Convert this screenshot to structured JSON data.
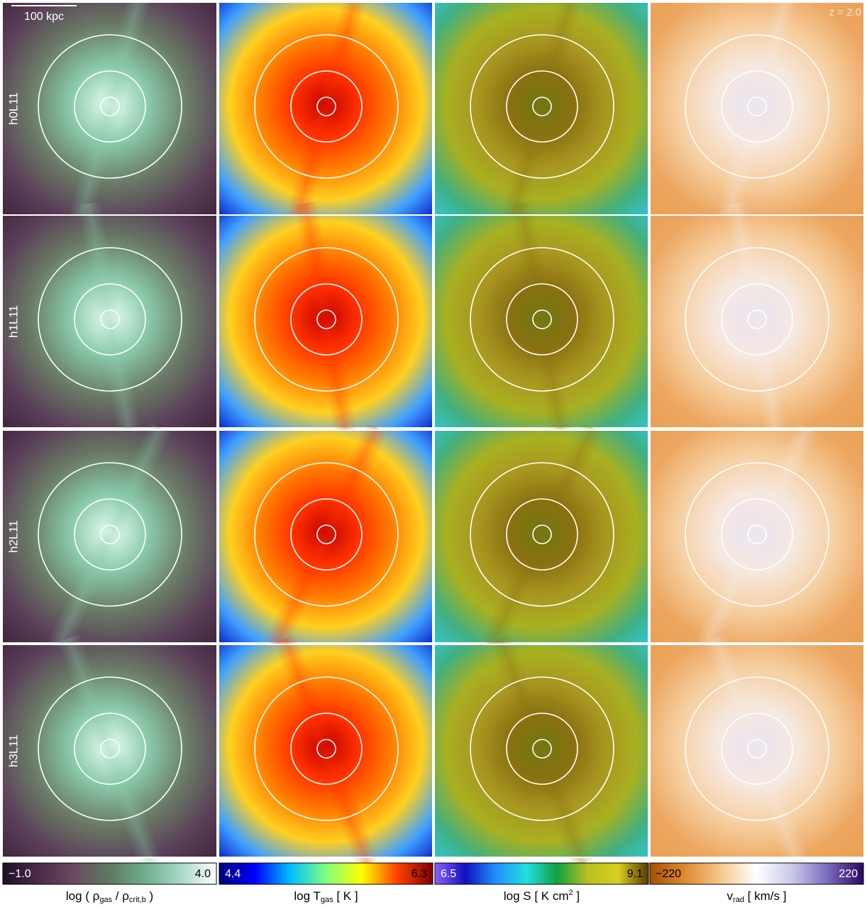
{
  "figure": {
    "scale_bar": "100 kpc",
    "redshift": "z = 2.0",
    "rows": [
      "h0L11",
      "h1L11",
      "h2L11",
      "h3L11"
    ],
    "columns": [
      {
        "colormap": [
          "#1e0f24",
          "#4a2a4a",
          "#6b4a5e",
          "#5e7a62",
          "#6fae8c",
          "#a8d8c8",
          "#ffffff"
        ],
        "panel_stops": [
          "#e8fff4",
          "#88c8a8",
          "#6a7a66",
          "#5a3e58",
          "#3c2238"
        ],
        "ticks": [
          {
            "value": -1,
            "label": "−1.0"
          },
          {
            "value": 4,
            "label": "4.0"
          }
        ],
        "label": [
          {
            "text": "log ( ρ"
          },
          {
            "sub": "gas"
          },
          {
            "text": " / ρ"
          },
          {
            "sub": "crit,b"
          },
          {
            "text": " )"
          }
        ]
      },
      {
        "colormap": [
          "#00007f",
          "#0000ff",
          "#00bfff",
          "#7fff7f",
          "#ffff00",
          "#ff4000",
          "#7f0000"
        ],
        "panel_stops": [
          "#c00000",
          "#ff3000",
          "#ff7a00",
          "#ffd020",
          "#40a0ff",
          "#0010c0"
        ],
        "ticks": [
          4.4,
          6.3
        ],
        "label": [
          {
            "text": "log T"
          },
          {
            "sub": "gas"
          },
          {
            "text": " [ K ]"
          }
        ]
      },
      {
        "colormap": [
          "#8a60ff",
          "#1010c0",
          "#2090ff",
          "#20e0e0",
          "#10a040",
          "#b8c020",
          "#d8d020",
          "#5a3a00"
        ],
        "panel_stops": [
          "#6a7a10",
          "#8a7010",
          "#a89620",
          "#a8b020",
          "#40b080",
          "#30c8e0"
        ],
        "ticks": [
          6.5,
          9.1
        ],
        "label": [
          {
            "text": "log S [ K cm"
          },
          {
            "sup": "2"
          },
          {
            "text": " ]"
          }
        ]
      },
      {
        "colormap": [
          "#a85000",
          "#e08a30",
          "#f8c890",
          "#ffffff",
          "#c8c8e8",
          "#7a6ac0",
          "#2a0860"
        ],
        "panel_stops": [
          "#e8e4f4",
          "#f6e8e0",
          "#f6cfa0",
          "#eca660",
          "#e8a050"
        ],
        "ticks": [
          {
            "value": -220,
            "label": "−220"
          },
          220
        ],
        "label": [
          {
            "text": "v"
          },
          {
            "sub": "rad"
          },
          {
            "text": " [ km/s ]"
          }
        ]
      }
    ]
  }
}
